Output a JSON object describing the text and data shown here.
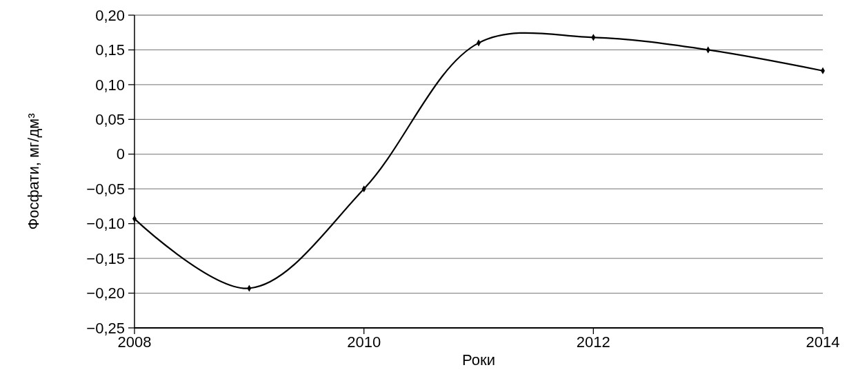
{
  "chart_data": {
    "type": "line",
    "xlabel": "Роки",
    "ylabel": "Фосфати, мг/дм³",
    "x": [
      2008,
      2009,
      2010,
      2011,
      2012,
      2013,
      2014
    ],
    "series": [
      {
        "color": "#000000",
        "values": [
          -0.093,
          -0.193,
          -0.05,
          0.16,
          0.168,
          0.15,
          0.12
        ]
      }
    ],
    "xlim": [
      2008,
      2014
    ],
    "xticks": [
      2008,
      2010,
      2012,
      2014
    ],
    "ylim": [
      -0.25,
      0.2
    ],
    "yticks": [
      {
        "value": -0.25,
        "label": "−0,25"
      },
      {
        "value": -0.2,
        "label": "−0,20"
      },
      {
        "value": -0.15,
        "label": "−0,15"
      },
      {
        "value": -0.1,
        "label": "−0,10"
      },
      {
        "value": -0.05,
        "label": "−0,05"
      },
      0,
      {
        "value": 0.05,
        "label": "0,05"
      },
      {
        "value": 0.1,
        "label": "0,10"
      },
      {
        "value": 0.15,
        "label": "0,15"
      },
      {
        "value": 0.2,
        "label": "0,20"
      }
    ],
    "grid": "y",
    "marker": "diamond",
    "line_style": "solid"
  }
}
